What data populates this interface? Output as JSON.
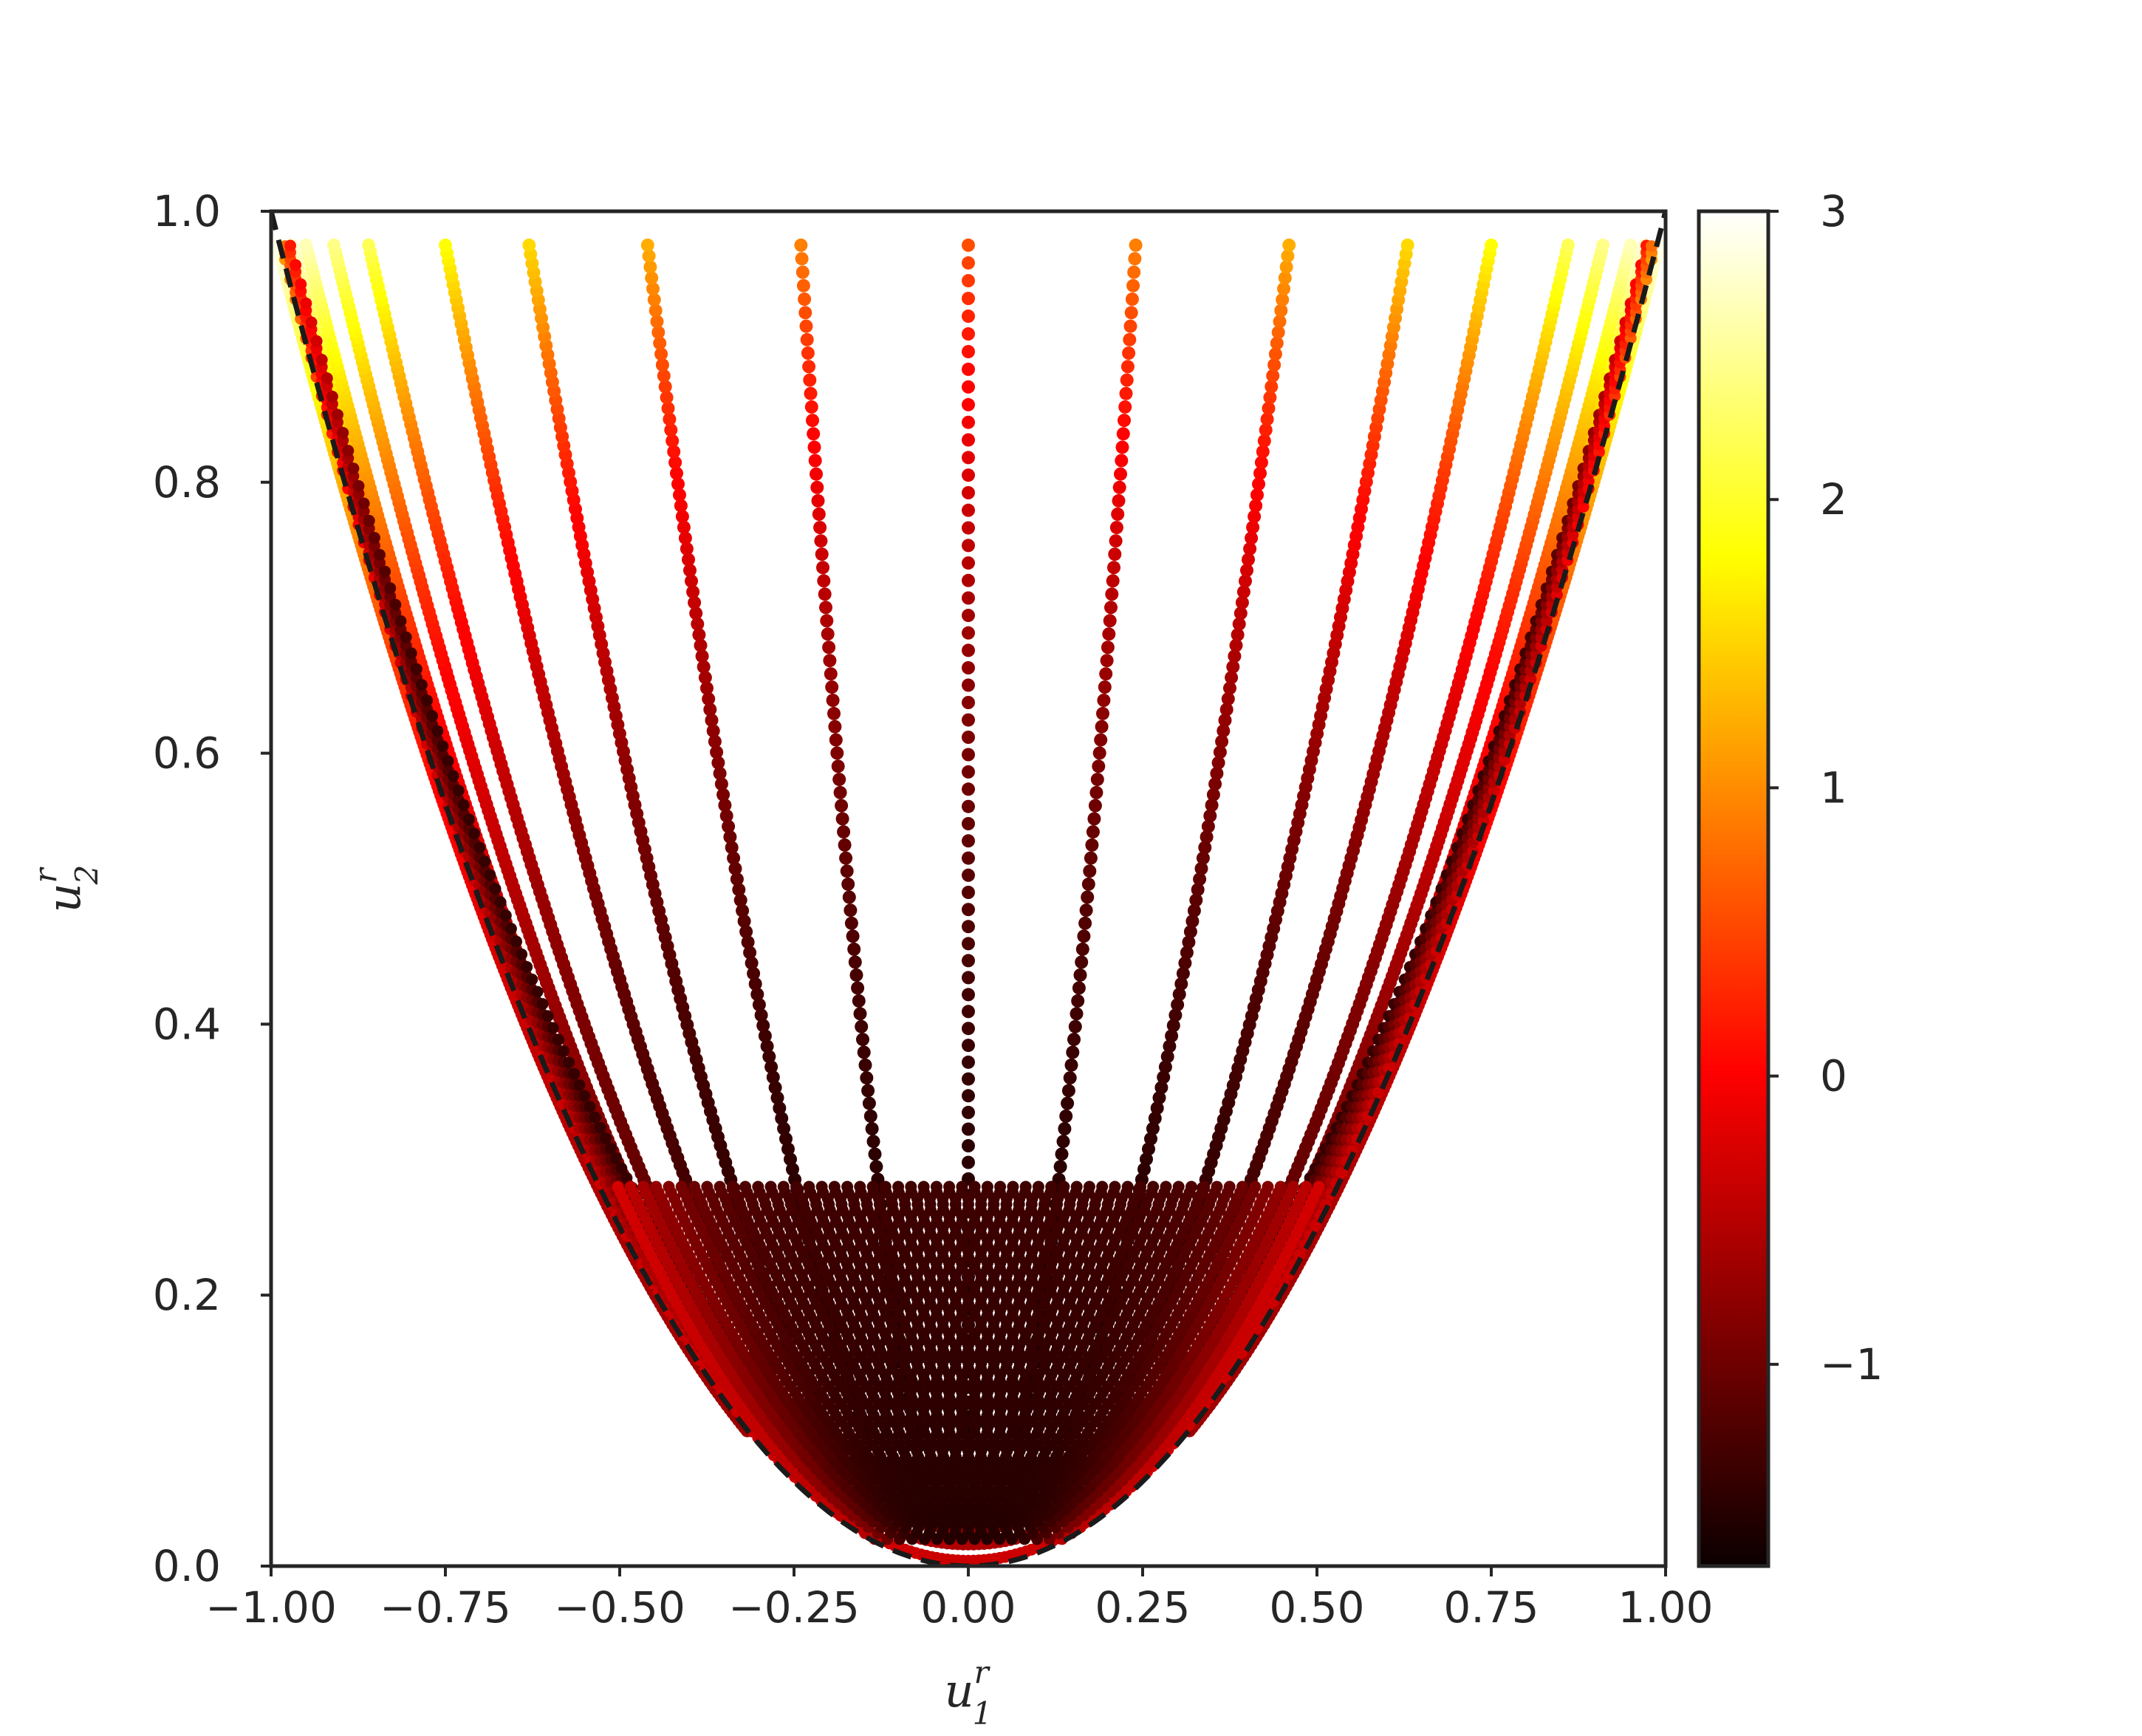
{
  "chart_data": {
    "type": "scatter",
    "title": "",
    "xlabel": {
      "base": "u",
      "sup": "r",
      "sub": "1"
    },
    "ylabel": {
      "base": "u",
      "sup": "r",
      "sub": "2"
    },
    "xlim": [
      -1.0,
      1.0
    ],
    "ylim": [
      0.0,
      1.0
    ],
    "xticks": [
      -1.0,
      -0.75,
      -0.5,
      -0.25,
      0.0,
      0.25,
      0.5,
      0.75,
      1.0
    ],
    "xtick_labels": [
      "−1.00",
      "−0.75",
      "−0.50",
      "−0.25",
      "0.00",
      "0.25",
      "0.50",
      "0.75",
      "1.00"
    ],
    "yticks": [
      0.0,
      0.2,
      0.4,
      0.6,
      0.8,
      1.0
    ],
    "ytick_labels": [
      "0.0",
      "0.2",
      "0.4",
      "0.6",
      "0.8",
      "1.0"
    ],
    "grid": false,
    "boundary_curve": {
      "style": "dashed",
      "color": "#1a1a1a",
      "equation": "u2 = u1^2"
    },
    "point_family": {
      "description_of_rays": "points lie on rays from near (0, 0.1) up to y = 0.975",
      "ray_endpoints_x_at_top": [
        -0.99,
        -0.97,
        -0.95,
        -0.91,
        -0.86,
        -0.75,
        -0.63,
        -0.46,
        -0.24,
        0.0,
        0.24,
        0.46,
        0.63,
        0.75,
        0.86,
        0.91,
        0.95,
        0.97,
        0.99
      ],
      "top_y": 0.975,
      "color_value_range": [
        -1.6,
        2.1
      ]
    },
    "colorbar": {
      "colormap": "hot",
      "vmin": -1.7,
      "vmax": 3.0,
      "ticks": [
        -1,
        0,
        1,
        2,
        3
      ],
      "tick_labels": [
        "−1",
        "0",
        "1",
        "2",
        "3"
      ]
    }
  }
}
